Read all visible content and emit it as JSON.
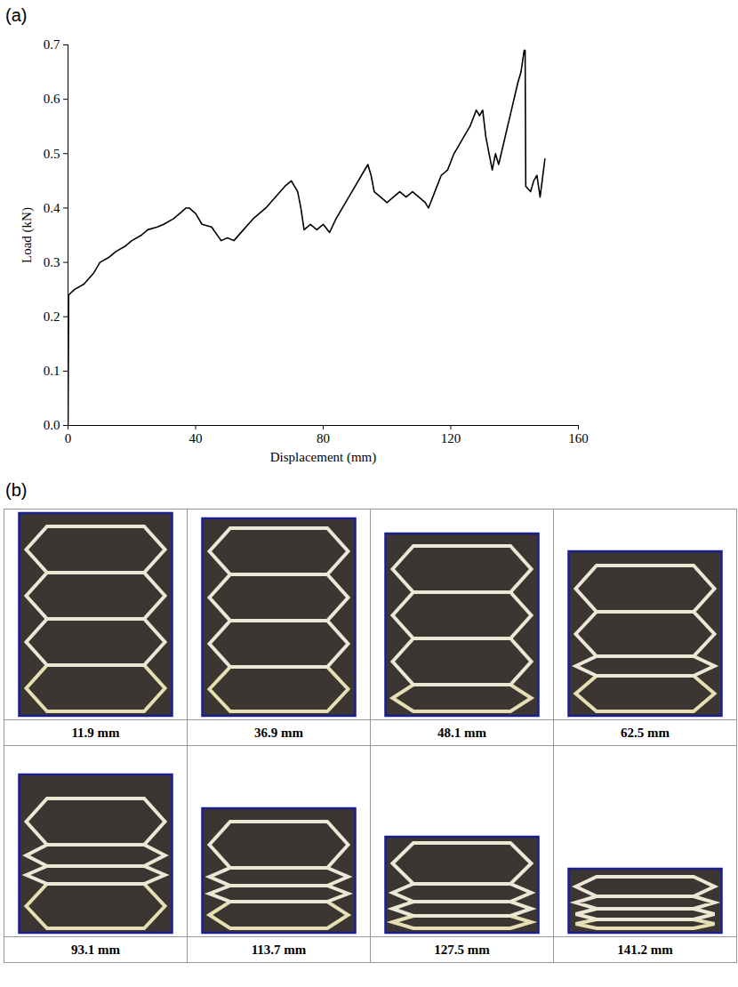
{
  "chart_data": {
    "type": "line",
    "panel_label": "(a)",
    "x_label": "Displacement (mm)",
    "y_label": "Load (kN)",
    "x": [
      0,
      0.2,
      2,
      5,
      8,
      10,
      13,
      15,
      18,
      20,
      23,
      25,
      28,
      30,
      33,
      35,
      37,
      38,
      40,
      42,
      45,
      48,
      50,
      52,
      55,
      58,
      62,
      65,
      68,
      70,
      71,
      72,
      73,
      74,
      76,
      78,
      80,
      82,
      84,
      86,
      89,
      92,
      94,
      95,
      96,
      98,
      100,
      102,
      104,
      106,
      108,
      110,
      112,
      113,
      115,
      117,
      119,
      121,
      124,
      126,
      128,
      129,
      130,
      131,
      132,
      133,
      134,
      135,
      137,
      139,
      141,
      142,
      143,
      143.3,
      143.5,
      145,
      146,
      147,
      148,
      149.5
    ],
    "values": [
      0,
      0.24,
      0.25,
      0.26,
      0.28,
      0.3,
      0.31,
      0.32,
      0.33,
      0.34,
      0.35,
      0.36,
      0.365,
      0.37,
      0.38,
      0.39,
      0.4,
      0.4,
      0.39,
      0.37,
      0.365,
      0.34,
      0.345,
      0.34,
      0.36,
      0.38,
      0.4,
      0.42,
      0.44,
      0.45,
      0.44,
      0.43,
      0.4,
      0.36,
      0.37,
      0.36,
      0.37,
      0.355,
      0.38,
      0.4,
      0.43,
      0.46,
      0.48,
      0.46,
      0.43,
      0.42,
      0.41,
      0.42,
      0.43,
      0.42,
      0.43,
      0.42,
      0.41,
      0.4,
      0.43,
      0.46,
      0.47,
      0.5,
      0.53,
      0.55,
      0.58,
      0.57,
      0.58,
      0.53,
      0.5,
      0.47,
      0.5,
      0.48,
      0.53,
      0.58,
      0.63,
      0.65,
      0.69,
      0.69,
      0.44,
      0.43,
      0.45,
      0.46,
      0.42,
      0.49
    ],
    "color": "#000000",
    "xlim": [
      0,
      160
    ],
    "xticks": [
      0,
      40,
      80,
      120,
      160
    ],
    "ylim": [
      0,
      0.7
    ],
    "yticks": [
      {
        "value": 0,
        "label": "0.0"
      },
      0.1,
      0.2,
      0.3,
      0.4,
      0.5,
      0.6,
      0.7
    ],
    "grid": false
  },
  "photo_panel": {
    "panel_label": "(b)",
    "captions": [
      "11.9 mm",
      "36.9 mm",
      "48.1 mm",
      "62.5 mm",
      "93.1 mm",
      "113.7 mm",
      "127.5 mm",
      "141.2 mm"
    ]
  }
}
